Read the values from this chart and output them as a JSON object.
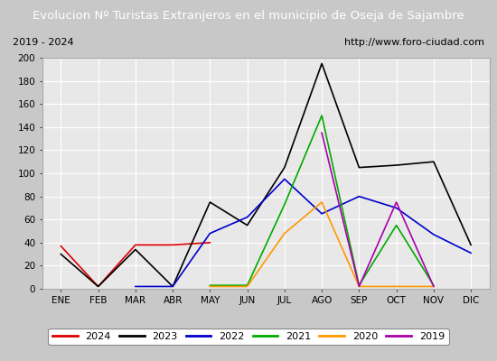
{
  "title": "Evolucion Nº Turistas Extranjeros en el municipio de Oseja de Sajambre",
  "subtitle_left": "2019 - 2024",
  "subtitle_right": "http://www.foro-ciudad.com",
  "months": [
    "ENE",
    "FEB",
    "MAR",
    "ABR",
    "MAY",
    "JUN",
    "JUL",
    "AGO",
    "SEP",
    "OCT",
    "NOV",
    "DIC"
  ],
  "series_data": {
    "2024": [
      37,
      2,
      38,
      38,
      40,
      null,
      null,
      null,
      null,
      null,
      null,
      null
    ],
    "2023": [
      30,
      2,
      34,
      2,
      75,
      55,
      105,
      195,
      105,
      107,
      110,
      38
    ],
    "2022": [
      null,
      null,
      2,
      2,
      48,
      62,
      95,
      65,
      80,
      70,
      47,
      31
    ],
    "2021": [
      null,
      null,
      null,
      null,
      3,
      3,
      73,
      150,
      3,
      55,
      3,
      null
    ],
    "2020": [
      null,
      null,
      null,
      null,
      2,
      2,
      48,
      75,
      2,
      2,
      2,
      null
    ],
    "2019": [
      null,
      null,
      null,
      null,
      null,
      null,
      null,
      135,
      2,
      75,
      2,
      null
    ]
  },
  "colors": {
    "2024": "#dd0000",
    "2023": "#000000",
    "2022": "#0000cc",
    "2021": "#00aa00",
    "2020": "#ff9900",
    "2019": "#aa00aa"
  },
  "legend_order": [
    "2024",
    "2023",
    "2022",
    "2021",
    "2020",
    "2019"
  ],
  "ylim": [
    0,
    200
  ],
  "yticks": [
    0,
    20,
    40,
    60,
    80,
    100,
    120,
    140,
    160,
    180,
    200
  ],
  "title_bgcolor": "#4d8cc8",
  "title_fgcolor": "#ffffff",
  "subtitle_bgcolor": "#e8e8e8",
  "plot_bgcolor": "#e8e8e8",
  "outer_bgcolor": "#c8c8c8",
  "grid_color": "#ffffff"
}
